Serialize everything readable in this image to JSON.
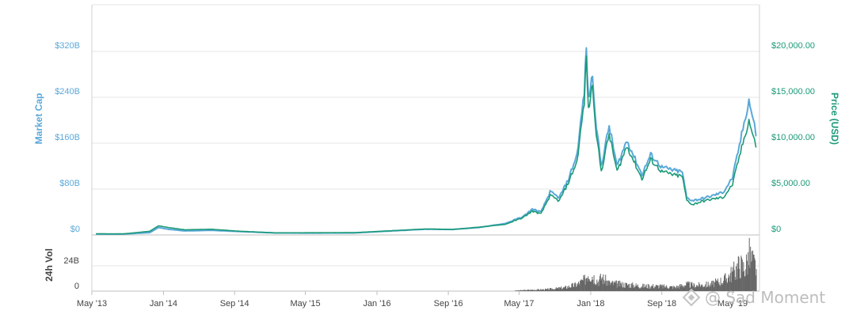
{
  "chart_data": {
    "type": "line",
    "x_ticks": [
      "May '13",
      "Jan '14",
      "Sep '14",
      "May '15",
      "Jan '16",
      "Sep '16",
      "May '17",
      "Jan '18",
      "Sep '18",
      "May '19"
    ],
    "left_axis": {
      "label": "Market Cap",
      "ticks": [
        "$0",
        "$80B",
        "$160B",
        "$240B",
        "$320B"
      ],
      "ylim_billions": [
        0,
        320
      ],
      "color": "#5aa8d8"
    },
    "right_axis": {
      "label": "Price (USD)",
      "ticks": [
        "$0",
        "$5,000.00",
        "$10,000.00",
        "$15,000.00",
        "$20,000.00"
      ],
      "ylim": [
        0,
        20000
      ],
      "color": "#1a9a78"
    },
    "volume_axis": {
      "label": "24h Vol",
      "ticks": [
        "0",
        "24B"
      ],
      "color": "#777777"
    },
    "grid": true,
    "series": [
      {
        "name": "Market Cap",
        "color": "#5aa8d8",
        "unit": "billion USD",
        "points": [
          [
            "2013-05",
            1.5
          ],
          [
            "2013-08",
            1.6
          ],
          [
            "2013-11",
            4
          ],
          [
            "2013-12",
            13
          ],
          [
            "2014-01",
            10
          ],
          [
            "2014-03",
            7
          ],
          [
            "2014-06",
            8
          ],
          [
            "2014-09",
            6
          ],
          [
            "2015-01",
            3.5
          ],
          [
            "2015-05",
            3.3
          ],
          [
            "2015-10",
            3.5
          ],
          [
            "2016-01",
            6
          ],
          [
            "2016-06",
            10
          ],
          [
            "2016-09",
            9.5
          ],
          [
            "2016-12",
            13
          ],
          [
            "2017-03",
            20
          ],
          [
            "2017-05",
            32
          ],
          [
            "2017-06",
            45
          ],
          [
            "2017-07",
            40
          ],
          [
            "2017-08",
            75
          ],
          [
            "2017-09",
            65
          ],
          [
            "2017-10",
            95
          ],
          [
            "2017-11",
            140
          ],
          [
            "2017-12-10",
            250
          ],
          [
            "2017-12-17",
            326
          ],
          [
            "2017-12-24",
            235
          ],
          [
            "2018-01-07",
            280
          ],
          [
            "2018-01-20",
            190
          ],
          [
            "2018-02-06",
            120
          ],
          [
            "2018-03-05",
            190
          ],
          [
            "2018-04-01",
            120
          ],
          [
            "2018-05-05",
            165
          ],
          [
            "2018-06-25",
            105
          ],
          [
            "2018-07-25",
            140
          ],
          [
            "2018-09-01",
            118
          ],
          [
            "2018-10-15",
            112
          ],
          [
            "2018-11-10",
            110
          ],
          [
            "2018-11-25",
            65
          ],
          [
            "2018-12-15",
            60
          ],
          [
            "2019-01-15",
            63
          ],
          [
            "2019-02-20",
            68
          ],
          [
            "2019-03-31",
            75
          ],
          [
            "2019-05-01",
            100
          ],
          [
            "2019-05-20",
            145
          ],
          [
            "2019-06-26",
            235
          ],
          [
            "2019-07-15",
            190
          ],
          [
            "2019-07-20",
            175
          ]
        ]
      },
      {
        "name": "Price (USD)",
        "color": "#1a9a78",
        "unit": "USD",
        "points": [
          [
            "2013-05",
            120
          ],
          [
            "2013-08",
            110
          ],
          [
            "2013-11",
            400
          ],
          [
            "2013-12",
            1000
          ],
          [
            "2014-01",
            820
          ],
          [
            "2014-03",
            560
          ],
          [
            "2014-06",
            620
          ],
          [
            "2014-09",
            410
          ],
          [
            "2015-01",
            230
          ],
          [
            "2015-05",
            237
          ],
          [
            "2015-10",
            250
          ],
          [
            "2016-01",
            400
          ],
          [
            "2016-06",
            650
          ],
          [
            "2016-09",
            600
          ],
          [
            "2016-12",
            850
          ],
          [
            "2017-03",
            1150
          ],
          [
            "2017-05",
            1900
          ],
          [
            "2017-06",
            2600
          ],
          [
            "2017-07",
            2300
          ],
          [
            "2017-08",
            4300
          ],
          [
            "2017-09",
            3700
          ],
          [
            "2017-10",
            5600
          ],
          [
            "2017-11",
            8000
          ],
          [
            "2017-12-10",
            14500
          ],
          [
            "2017-12-17",
            19500
          ],
          [
            "2017-12-24",
            13500
          ],
          [
            "2018-01-07",
            16500
          ],
          [
            "2018-01-20",
            11000
          ],
          [
            "2018-02-06",
            6900
          ],
          [
            "2018-03-05",
            11000
          ],
          [
            "2018-04-01",
            6900
          ],
          [
            "2018-05-05",
            9700
          ],
          [
            "2018-06-25",
            6100
          ],
          [
            "2018-07-25",
            8200
          ],
          [
            "2018-09-01",
            6900
          ],
          [
            "2018-10-15",
            6500
          ],
          [
            "2018-11-10",
            6400
          ],
          [
            "2018-11-25",
            3800
          ],
          [
            "2018-12-15",
            3300
          ],
          [
            "2019-01-15",
            3650
          ],
          [
            "2019-02-20",
            3900
          ],
          [
            "2019-03-31",
            4100
          ],
          [
            "2019-05-01",
            5500
          ],
          [
            "2019-05-20",
            8000
          ],
          [
            "2019-06-26",
            12500
          ],
          [
            "2019-07-15",
            10200
          ],
          [
            "2019-07-20",
            9700
          ]
        ]
      }
    ],
    "volume": {
      "name": "24h Vol",
      "unit": "billion USD",
      "color": "#666666",
      "points": [
        [
          "2017-04-15",
          0.4
        ],
        [
          "2017-06-01",
          1
        ],
        [
          "2017-08-01",
          1.5
        ],
        [
          "2017-10-01",
          3
        ],
        [
          "2017-11-15",
          6
        ],
        [
          "2017-12-10",
          10
        ],
        [
          "2017-12-22",
          17
        ],
        [
          "2018-01-05",
          14
        ],
        [
          "2018-01-25",
          9
        ],
        [
          "2018-02-06",
          12
        ],
        [
          "2018-03-05",
          7
        ],
        [
          "2018-04-15",
          6
        ],
        [
          "2018-05-15",
          5.5
        ],
        [
          "2018-06-25",
          4.5
        ],
        [
          "2018-08-01",
          4.5
        ],
        [
          "2018-09-15",
          4
        ],
        [
          "2018-10-15",
          3.5
        ],
        [
          "2018-11-25",
          6
        ],
        [
          "2018-12-20",
          5
        ],
        [
          "2019-02-15",
          6
        ],
        [
          "2019-04-01",
          10
        ],
        [
          "2019-05-10",
          19
        ],
        [
          "2019-05-25",
          24
        ],
        [
          "2019-06-10",
          20
        ],
        [
          "2019-06-26",
          32
        ],
        [
          "2019-07-10",
          25
        ],
        [
          "2019-07-20",
          21
        ]
      ]
    },
    "watermark": "@ Sad Moment"
  }
}
